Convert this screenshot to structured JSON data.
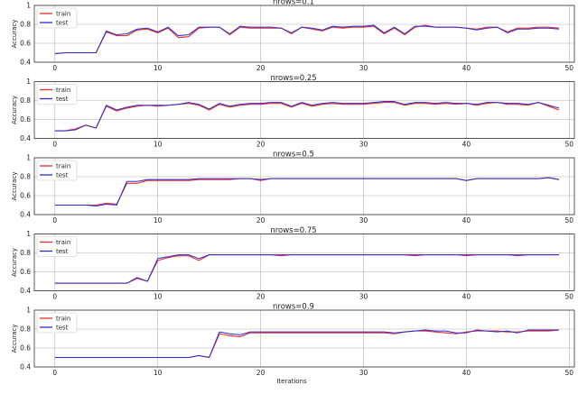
{
  "chart_data": [
    {
      "type": "line",
      "title": "nrows=0.1",
      "xlabel": "",
      "ylabel": "Accuracy",
      "xlim": [
        -2,
        50.5
      ],
      "ylim": [
        0.4,
        1.0
      ],
      "xticks": [
        0,
        10,
        20,
        30,
        40,
        50
      ],
      "yticks": [
        0.4,
        0.6,
        0.8,
        1.0
      ],
      "grid": true,
      "legend": "top-left",
      "series": [
        {
          "name": "train",
          "color": "#e8302a",
          "values": [
            0.49,
            0.5,
            0.5,
            0.5,
            0.5,
            0.72,
            0.68,
            0.68,
            0.74,
            0.75,
            0.71,
            0.76,
            0.66,
            0.67,
            0.76,
            0.77,
            0.77,
            0.69,
            0.77,
            0.76,
            0.76,
            0.76,
            0.76,
            0.7,
            0.77,
            0.75,
            0.73,
            0.77,
            0.76,
            0.77,
            0.77,
            0.78,
            0.7,
            0.76,
            0.69,
            0.77,
            0.79,
            0.77,
            0.77,
            0.77,
            0.76,
            0.75,
            0.77,
            0.77,
            0.72,
            0.76,
            0.76,
            0.77,
            0.77,
            0.76
          ]
        },
        {
          "name": "test",
          "color": "#2b2bd6",
          "values": [
            0.49,
            0.5,
            0.5,
            0.5,
            0.5,
            0.73,
            0.69,
            0.7,
            0.75,
            0.76,
            0.72,
            0.77,
            0.68,
            0.69,
            0.77,
            0.77,
            0.77,
            0.7,
            0.78,
            0.77,
            0.77,
            0.77,
            0.76,
            0.71,
            0.77,
            0.76,
            0.74,
            0.78,
            0.77,
            0.78,
            0.78,
            0.79,
            0.71,
            0.77,
            0.7,
            0.78,
            0.78,
            0.77,
            0.77,
            0.77,
            0.76,
            0.74,
            0.76,
            0.77,
            0.71,
            0.75,
            0.75,
            0.76,
            0.76,
            0.75
          ]
        }
      ]
    },
    {
      "type": "line",
      "title": "nrows=0.25",
      "xlabel": "",
      "ylabel": "Accuracy",
      "xlim": [
        -2,
        50.5
      ],
      "ylim": [
        0.4,
        1.0
      ],
      "xticks": [
        0,
        10,
        20,
        30,
        40,
        50
      ],
      "yticks": [
        0.4,
        0.6,
        0.8,
        1.0
      ],
      "grid": true,
      "legend": "top-left",
      "series": [
        {
          "name": "train",
          "color": "#e8302a",
          "values": [
            0.48,
            0.48,
            0.5,
            0.54,
            0.51,
            0.74,
            0.69,
            0.72,
            0.74,
            0.75,
            0.74,
            0.75,
            0.76,
            0.77,
            0.75,
            0.7,
            0.76,
            0.73,
            0.75,
            0.76,
            0.76,
            0.77,
            0.77,
            0.73,
            0.77,
            0.74,
            0.76,
            0.77,
            0.76,
            0.76,
            0.76,
            0.77,
            0.78,
            0.78,
            0.75,
            0.77,
            0.77,
            0.76,
            0.77,
            0.76,
            0.77,
            0.75,
            0.77,
            0.78,
            0.76,
            0.76,
            0.75,
            0.78,
            0.74,
            0.7
          ]
        },
        {
          "name": "test",
          "color": "#2b2bd6",
          "values": [
            0.48,
            0.48,
            0.49,
            0.54,
            0.51,
            0.75,
            0.7,
            0.73,
            0.75,
            0.75,
            0.75,
            0.75,
            0.76,
            0.78,
            0.76,
            0.71,
            0.77,
            0.74,
            0.76,
            0.77,
            0.77,
            0.78,
            0.78,
            0.74,
            0.78,
            0.75,
            0.77,
            0.78,
            0.77,
            0.77,
            0.77,
            0.78,
            0.79,
            0.79,
            0.76,
            0.78,
            0.78,
            0.77,
            0.78,
            0.77,
            0.77,
            0.76,
            0.78,
            0.78,
            0.77,
            0.77,
            0.76,
            0.78,
            0.75,
            0.72
          ]
        }
      ]
    },
    {
      "type": "line",
      "title": "nrows=0.5",
      "xlabel": "",
      "ylabel": "Accuracy",
      "xlim": [
        -2,
        50.5
      ],
      "ylim": [
        0.4,
        1.0
      ],
      "xticks": [
        0,
        10,
        20,
        30,
        40,
        50
      ],
      "yticks": [
        0.4,
        0.6,
        0.8,
        1.0
      ],
      "grid": true,
      "legend": "top-left",
      "series": [
        {
          "name": "train",
          "color": "#e8302a",
          "values": [
            0.5,
            0.5,
            0.5,
            0.5,
            0.5,
            0.52,
            0.51,
            0.73,
            0.73,
            0.76,
            0.76,
            0.76,
            0.76,
            0.76,
            0.77,
            0.77,
            0.77,
            0.77,
            0.78,
            0.78,
            0.76,
            0.78,
            0.78,
            0.78,
            0.78,
            0.78,
            0.78,
            0.78,
            0.78,
            0.78,
            0.78,
            0.78,
            0.78,
            0.78,
            0.78,
            0.78,
            0.78,
            0.78,
            0.78,
            0.78,
            0.76,
            0.78,
            0.78,
            0.78,
            0.78,
            0.78,
            0.78,
            0.78,
            0.79,
            0.77
          ]
        },
        {
          "name": "test",
          "color": "#2b2bd6",
          "values": [
            0.5,
            0.5,
            0.5,
            0.5,
            0.49,
            0.51,
            0.5,
            0.75,
            0.75,
            0.77,
            0.77,
            0.77,
            0.77,
            0.77,
            0.78,
            0.78,
            0.78,
            0.78,
            0.78,
            0.78,
            0.77,
            0.78,
            0.78,
            0.78,
            0.78,
            0.78,
            0.78,
            0.78,
            0.78,
            0.78,
            0.78,
            0.78,
            0.78,
            0.78,
            0.78,
            0.78,
            0.78,
            0.78,
            0.78,
            0.78,
            0.76,
            0.78,
            0.78,
            0.78,
            0.78,
            0.78,
            0.78,
            0.78,
            0.79,
            0.77
          ]
        }
      ]
    },
    {
      "type": "line",
      "title": "nrows=0.75",
      "xlabel": "",
      "ylabel": "Accuracy",
      "xlim": [
        -2,
        50.5
      ],
      "ylim": [
        0.4,
        1.0
      ],
      "xticks": [
        0,
        10,
        20,
        30,
        40,
        50
      ],
      "yticks": [
        0.4,
        0.6,
        0.8,
        1.0
      ],
      "grid": true,
      "legend": "top-left",
      "series": [
        {
          "name": "train",
          "color": "#e8302a",
          "values": [
            0.48,
            0.48,
            0.48,
            0.48,
            0.48,
            0.48,
            0.48,
            0.48,
            0.53,
            0.5,
            0.72,
            0.75,
            0.77,
            0.77,
            0.72,
            0.78,
            0.78,
            0.78,
            0.78,
            0.78,
            0.78,
            0.78,
            0.77,
            0.78,
            0.78,
            0.78,
            0.78,
            0.78,
            0.78,
            0.78,
            0.78,
            0.78,
            0.78,
            0.78,
            0.78,
            0.77,
            0.78,
            0.78,
            0.78,
            0.78,
            0.77,
            0.78,
            0.78,
            0.78,
            0.78,
            0.77,
            0.78,
            0.78,
            0.78,
            0.78
          ]
        },
        {
          "name": "test",
          "color": "#2b2bd6",
          "values": [
            0.48,
            0.48,
            0.48,
            0.48,
            0.48,
            0.48,
            0.48,
            0.48,
            0.54,
            0.5,
            0.74,
            0.76,
            0.78,
            0.78,
            0.74,
            0.78,
            0.78,
            0.78,
            0.78,
            0.78,
            0.78,
            0.78,
            0.78,
            0.78,
            0.78,
            0.78,
            0.78,
            0.78,
            0.78,
            0.78,
            0.78,
            0.78,
            0.78,
            0.78,
            0.78,
            0.78,
            0.78,
            0.78,
            0.78,
            0.78,
            0.78,
            0.78,
            0.78,
            0.78,
            0.78,
            0.78,
            0.78,
            0.78,
            0.78,
            0.78
          ]
        }
      ]
    },
    {
      "type": "line",
      "title": "nrows=0.9",
      "xlabel": "Iterations",
      "ylabel": "Accuracy",
      "xlim": [
        -2,
        50.5
      ],
      "ylim": [
        0.4,
        1.0
      ],
      "xticks": [
        0,
        10,
        20,
        30,
        40,
        50
      ],
      "yticks": [
        0.4,
        0.6,
        0.8,
        1.0
      ],
      "grid": true,
      "legend": "top-left",
      "series": [
        {
          "name": "train",
          "color": "#e8302a",
          "values": [
            0.5,
            0.5,
            0.5,
            0.5,
            0.5,
            0.5,
            0.5,
            0.5,
            0.5,
            0.5,
            0.5,
            0.5,
            0.5,
            0.5,
            0.52,
            0.5,
            0.75,
            0.73,
            0.72,
            0.76,
            0.76,
            0.76,
            0.76,
            0.76,
            0.76,
            0.76,
            0.76,
            0.76,
            0.76,
            0.76,
            0.76,
            0.76,
            0.76,
            0.75,
            0.77,
            0.78,
            0.78,
            0.77,
            0.76,
            0.75,
            0.77,
            0.78,
            0.78,
            0.78,
            0.77,
            0.77,
            0.78,
            0.78,
            0.78,
            0.79
          ]
        },
        {
          "name": "test",
          "color": "#2b2bd6",
          "values": [
            0.5,
            0.5,
            0.5,
            0.5,
            0.5,
            0.5,
            0.5,
            0.5,
            0.5,
            0.5,
            0.5,
            0.5,
            0.5,
            0.5,
            0.52,
            0.5,
            0.77,
            0.75,
            0.74,
            0.77,
            0.77,
            0.77,
            0.77,
            0.77,
            0.77,
            0.77,
            0.77,
            0.77,
            0.77,
            0.77,
            0.77,
            0.77,
            0.77,
            0.76,
            0.77,
            0.78,
            0.79,
            0.78,
            0.78,
            0.76,
            0.76,
            0.79,
            0.78,
            0.77,
            0.78,
            0.76,
            0.79,
            0.79,
            0.79,
            0.79
          ]
        }
      ]
    }
  ]
}
